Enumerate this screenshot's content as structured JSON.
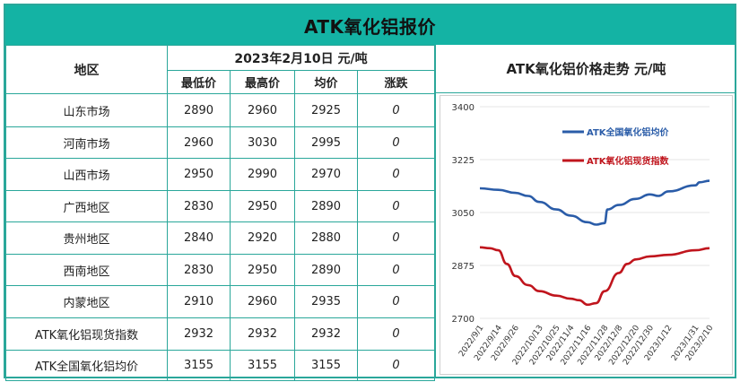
{
  "title": "ATK氧化铝报价",
  "table": {
    "region_header": "地区",
    "date_header": "2023年2月10日  元/吨",
    "columns": [
      "最低价",
      "最高价",
      "均价",
      "涨跌"
    ],
    "rows": [
      {
        "name": "山东市场",
        "low": "2890",
        "high": "2960",
        "avg": "2925",
        "change": "0"
      },
      {
        "name": "河南市场",
        "low": "2960",
        "high": "3030",
        "avg": "2995",
        "change": "0"
      },
      {
        "name": "山西市场",
        "low": "2950",
        "high": "2990",
        "avg": "2970",
        "change": "0"
      },
      {
        "name": "广西地区",
        "low": "2830",
        "high": "2950",
        "avg": "2890",
        "change": "0"
      },
      {
        "name": "贵州地区",
        "low": "2840",
        "high": "2920",
        "avg": "2880",
        "change": "0"
      },
      {
        "name": "西南地区",
        "low": "2830",
        "high": "2950",
        "avg": "2890",
        "change": "0"
      },
      {
        "name": "内蒙地区",
        "low": "2910",
        "high": "2960",
        "avg": "2935",
        "change": "0"
      },
      {
        "name": "ATK氧化铝现货指数",
        "low": "2932",
        "high": "2932",
        "avg": "2932",
        "change": "0"
      },
      {
        "name": "ATK全国氧化铝均价",
        "low": "3155",
        "high": "3155",
        "avg": "3155",
        "change": "0"
      }
    ]
  },
  "chart_title": "ATK氧化铝价格走势  元/吨",
  "chart_data": {
    "type": "line",
    "title": "ATK氧化铝价格走势  元/吨",
    "ylim": [
      2700,
      3400
    ],
    "yticks": [
      2700,
      2875,
      3050,
      3225,
      3400
    ],
    "x_ticks": [
      "2022/9/1",
      "2022/9/14",
      "2022/9/26",
      "2022/10/13",
      "2022/10/25",
      "2022/11/4",
      "2022/11/16",
      "2022/11/28",
      "2022/12/8",
      "2022/12/20",
      "2022/12/30",
      "2023/1/12",
      "2023/1/31",
      "2023/2/10"
    ],
    "x_range": [
      "2022/9/1",
      "2023/2/10"
    ],
    "legend_position": "top-right",
    "series": [
      {
        "name": "ATK全国氧化铝均价",
        "color": "#2a5ca8",
        "points": [
          [
            "2022/9/1",
            3130
          ],
          [
            "2022/9/14",
            3125
          ],
          [
            "2022/9/26",
            3115
          ],
          [
            "2022/10/5",
            3105
          ],
          [
            "2022/10/13",
            3085
          ],
          [
            "2022/10/25",
            3060
          ],
          [
            "2022/11/4",
            3040
          ],
          [
            "2022/11/16",
            3018
          ],
          [
            "2022/11/22",
            3010
          ],
          [
            "2022/11/28",
            3015
          ],
          [
            "2022/11/30",
            3060
          ],
          [
            "2022/12/8",
            3075
          ],
          [
            "2022/12/20",
            3095
          ],
          [
            "2022/12/30",
            3110
          ],
          [
            "2023/1/5",
            3105
          ],
          [
            "2023/1/12",
            3120
          ],
          [
            "2023/1/31",
            3140
          ],
          [
            "2023/2/3",
            3150
          ],
          [
            "2023/2/10",
            3155
          ]
        ]
      },
      {
        "name": "ATK氧化铝现货指数",
        "color": "#c0151d",
        "points": [
          [
            "2022/9/1",
            2935
          ],
          [
            "2022/9/8",
            2932
          ],
          [
            "2022/9/14",
            2925
          ],
          [
            "2022/9/20",
            2880
          ],
          [
            "2022/9/26",
            2840
          ],
          [
            "2022/10/5",
            2810
          ],
          [
            "2022/10/13",
            2790
          ],
          [
            "2022/10/25",
            2775
          ],
          [
            "2022/11/4",
            2765
          ],
          [
            "2022/11/10",
            2760
          ],
          [
            "2022/11/16",
            2745
          ],
          [
            "2022/11/22",
            2750
          ],
          [
            "2022/11/28",
            2790
          ],
          [
            "2022/12/8",
            2850
          ],
          [
            "2022/12/14",
            2880
          ],
          [
            "2022/12/20",
            2895
          ],
          [
            "2022/12/30",
            2905
          ],
          [
            "2023/1/12",
            2910
          ],
          [
            "2023/1/31",
            2925
          ],
          [
            "2023/2/10",
            2932
          ]
        ]
      }
    ]
  }
}
